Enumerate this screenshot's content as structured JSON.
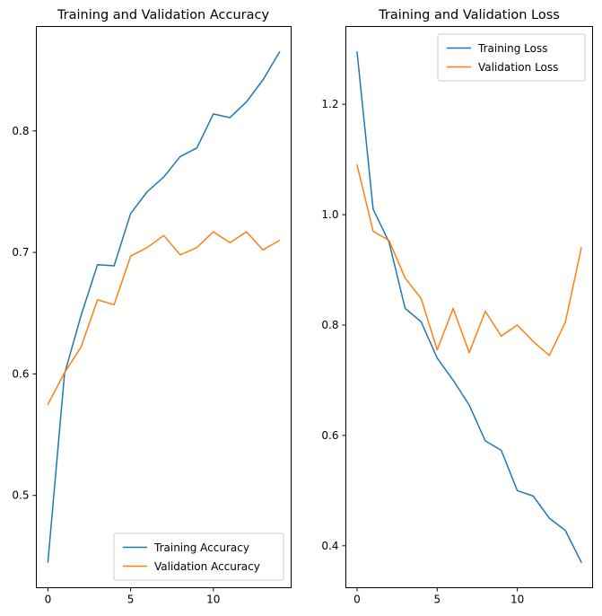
{
  "figure": {
    "background": "#ffffff"
  },
  "chart_data": [
    {
      "type": "line",
      "title": "Training and Validation Accuracy",
      "xlabel": "",
      "ylabel": "",
      "grid": false,
      "x": [
        0,
        1,
        2,
        3,
        4,
        5,
        6,
        7,
        8,
        9,
        10,
        11,
        12,
        13,
        14
      ],
      "xlim": [
        -0.7,
        14.7
      ],
      "ylim": [
        0.424,
        0.886
      ],
      "xticks": [
        {
          "v": 0,
          "label": "0"
        },
        {
          "v": 5,
          "label": "5"
        },
        {
          "v": 10,
          "label": "10"
        }
      ],
      "yticks": [
        {
          "v": 0.5,
          "label": "0.5"
        },
        {
          "v": 0.6,
          "label": "0.6"
        },
        {
          "v": 0.7,
          "label": "0.7"
        },
        {
          "v": 0.8,
          "label": "0.8"
        }
      ],
      "legend_position": "lower-right",
      "series": [
        {
          "name": "Training Accuracy",
          "color": "#1f77b4",
          "values": [
            0.445,
            0.6,
            0.648,
            0.69,
            0.689,
            0.732,
            0.75,
            0.762,
            0.779,
            0.786,
            0.814,
            0.811,
            0.824,
            0.842,
            0.865
          ]
        },
        {
          "name": "Validation Accuracy",
          "color": "#ff7f0e",
          "values": [
            0.575,
            0.601,
            0.622,
            0.661,
            0.657,
            0.697,
            0.704,
            0.714,
            0.698,
            0.704,
            0.717,
            0.708,
            0.717,
            0.702,
            0.71
          ]
        }
      ]
    },
    {
      "type": "line",
      "title": "Training and Validation Loss",
      "xlabel": "",
      "ylabel": "",
      "grid": false,
      "x": [
        0,
        1,
        2,
        3,
        4,
        5,
        6,
        7,
        8,
        9,
        10,
        11,
        12,
        13,
        14
      ],
      "xlim": [
        -0.7,
        14.7
      ],
      "ylim": [
        0.324,
        1.341
      ],
      "xticks": [
        {
          "v": 0,
          "label": "0"
        },
        {
          "v": 5,
          "label": "5"
        },
        {
          "v": 10,
          "label": "10"
        }
      ],
      "yticks": [
        {
          "v": 0.4,
          "label": "0.4"
        },
        {
          "v": 0.6,
          "label": "0.6"
        },
        {
          "v": 0.8,
          "label": "0.8"
        },
        {
          "v": 1.0,
          "label": "1.0"
        },
        {
          "v": 1.2,
          "label": "1.2"
        }
      ],
      "legend_position": "upper-right",
      "series": [
        {
          "name": "Training Loss",
          "color": "#1f77b4",
          "values": [
            1.295,
            1.01,
            0.95,
            0.83,
            0.806,
            0.74,
            0.7,
            0.655,
            0.59,
            0.573,
            0.5,
            0.49,
            0.45,
            0.428,
            0.37
          ]
        },
        {
          "name": "Validation Loss",
          "color": "#ff7f0e",
          "values": [
            1.09,
            0.97,
            0.953,
            0.885,
            0.848,
            0.755,
            0.83,
            0.75,
            0.825,
            0.78,
            0.8,
            0.77,
            0.745,
            0.805,
            0.94
          ]
        }
      ]
    }
  ]
}
